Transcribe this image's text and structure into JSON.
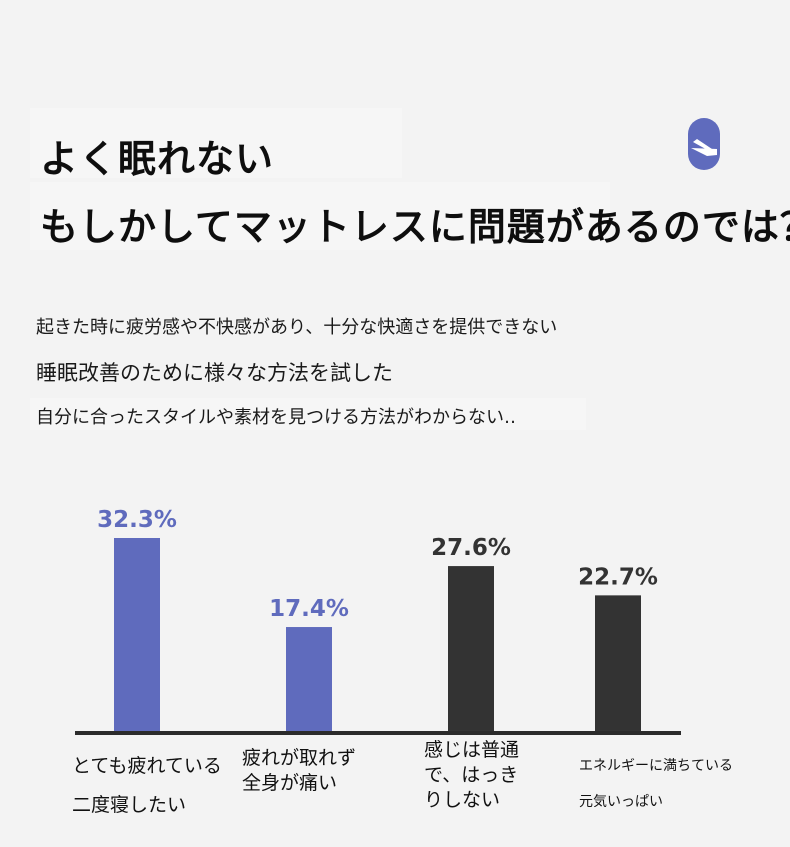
{
  "title": {
    "line1": "よく眠れない",
    "line2": "もしかしてマットレスに問題があるのでは？"
  },
  "subtexts": [
    "起きた時に疲労感や不快感があり、十分な快適さを提供できない",
    "睡眠改善のために様々な方法を試した",
    "自分に合ったスタイルや素材を見つける方法がわからない‥"
  ],
  "colors": {
    "accent": "#5f6bbd",
    "dark": "#333333",
    "axis": "#2b2b2b",
    "background": "#f3f3f3"
  },
  "chart_data": {
    "type": "bar",
    "categories": [
      "とても疲れている二度寝したい",
      "疲れが取れず全身が痛い",
      "感じは普通で、はっきりしない",
      "エネルギーに満ちている元気いっぱい"
    ],
    "values": [
      32.3,
      17.4,
      27.6,
      22.7
    ],
    "value_labels": [
      "32.3%",
      "17.4%",
      "27.6%",
      "22.7%"
    ],
    "bar_colors": [
      "#5f6bbd",
      "#5f6bbd",
      "#333333",
      "#333333"
    ],
    "ylim": [
      0,
      40
    ],
    "grid": false,
    "legend": "none",
    "xlabel": "",
    "ylabel": ""
  },
  "category_label_lines": [
    [
      "とても疲れている",
      "二度寝したい"
    ],
    [
      "疲れが取れず全身が痛い"
    ],
    [
      "感じは普通で、はっきりしない"
    ],
    [
      "エネルギーに満ちている",
      "元気いっぱい"
    ]
  ]
}
